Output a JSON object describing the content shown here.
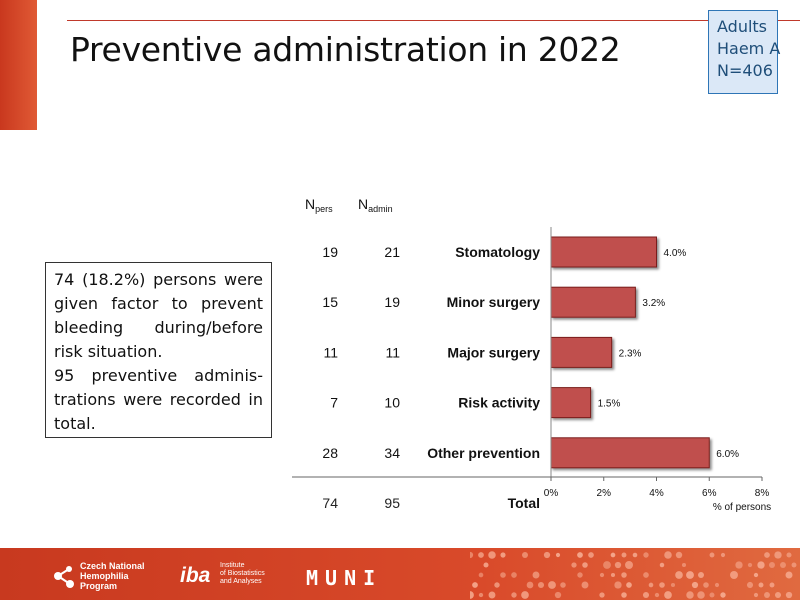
{
  "slide": {
    "title": "Preventive administration in 2022",
    "badge": [
      "Adults",
      "Haem A",
      "N=406"
    ],
    "textbox": [
      "74 (18.2%) persons were given factor to prevent bleeding during/before risk situation.",
      "95 preventive adminis-trations were recorded in total."
    ]
  },
  "table": {
    "header_npers": "N",
    "header_npers_sub": "pers",
    "header_nadmin": "N",
    "header_nadmin_sub": "admin",
    "total_label": "Total",
    "total_npers": "74",
    "total_nadmin": "95"
  },
  "chart_data": {
    "type": "bar",
    "orientation": "horizontal",
    "categories": [
      "Stomatology",
      "Minor surgery",
      "Major surgery",
      "Risk activity",
      "Other prevention"
    ],
    "values": [
      4.0,
      3.2,
      2.3,
      1.5,
      6.0
    ],
    "value_labels": [
      "4.0%",
      "3.2%",
      "2.3%",
      "1.5%",
      "6.0%"
    ],
    "n_pers": [
      "19",
      "15",
      "11",
      "7",
      "28"
    ],
    "n_admin": [
      "21",
      "19",
      "11",
      "10",
      "34"
    ],
    "xlabel": "% of persons",
    "xlim": [
      0,
      8
    ],
    "xticks": [
      "0%",
      "2%",
      "4%",
      "6%",
      "8%"
    ],
    "grid": false,
    "bar_color": "#c0504d"
  },
  "footer": {
    "logo1_lines": [
      "Czech National",
      "Hemophilia",
      "Program"
    ],
    "logo2_mark": "iba",
    "logo2_lines": [
      "Institute",
      "of Biostatistics",
      "and Analyses"
    ],
    "logo3": "MUNI",
    "background_color": "#c8391f"
  }
}
